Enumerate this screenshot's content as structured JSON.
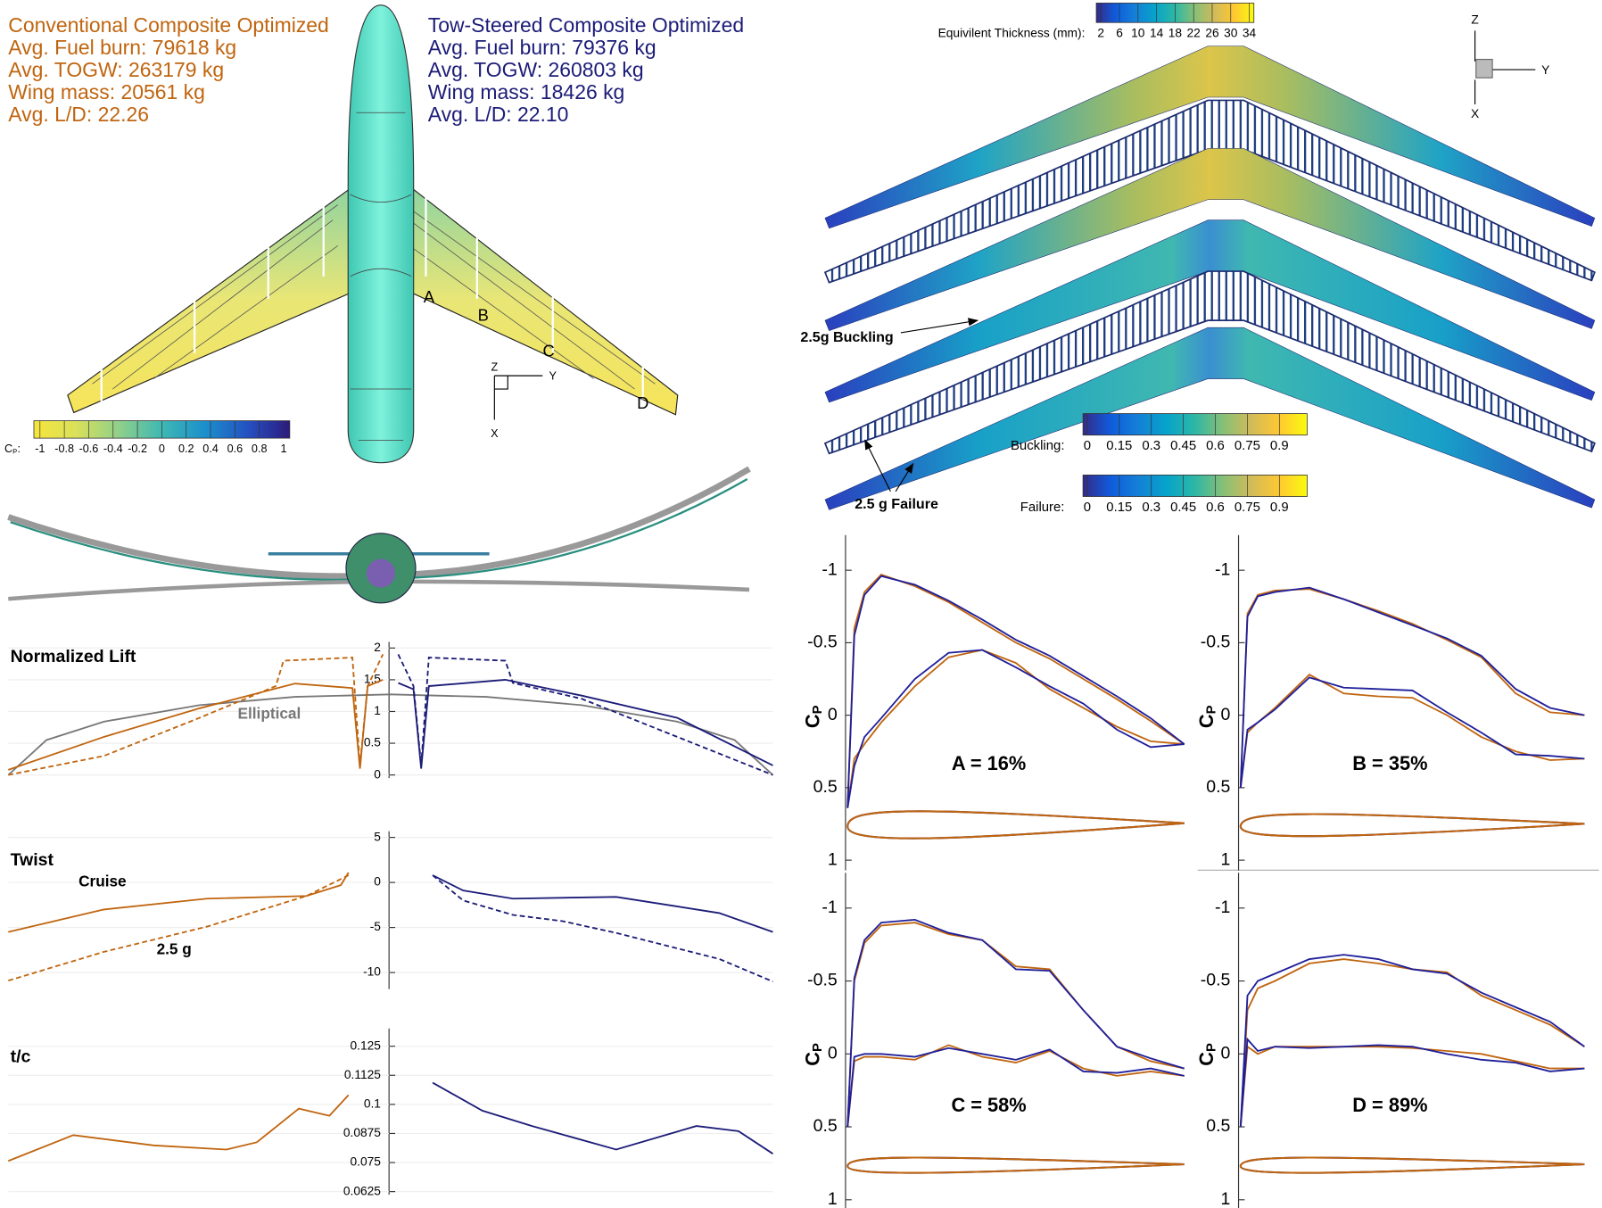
{
  "header": {
    "conventional": [
      "Conventional Composite Optimized",
      "Avg. Fuel burn: 79618 kg",
      "Avg. TOGW: 263179 kg",
      "Wing mass: 20561 kg",
      "Avg. L/D: 22.26"
    ],
    "conventional_color": "#c0650f",
    "tow_steered": [
      "Tow-Steered Composite Optimized",
      "Avg. Fuel burn: 79376 kg",
      "Avg. TOGW: 260803 kg",
      "Wing mass: 18426 kg",
      "Avg. L/D: 22.10"
    ],
    "tow_steered_color": "#1c1c78"
  },
  "planform": {
    "sections": [
      "A",
      "B",
      "C",
      "D"
    ],
    "triad": [
      "Z",
      "Y",
      "X"
    ]
  },
  "cp_colorbar": {
    "label": "Cₚ:",
    "ticks": [
      -1,
      -0.8,
      -0.6,
      -0.4,
      -0.2,
      0,
      0.2,
      0.4,
      0.6,
      0.8,
      1
    ],
    "range": [
      -1.05,
      1.05
    ],
    "colors": [
      "#f6e53c",
      "#d9e05a",
      "#8fd08a",
      "#3fb8b2",
      "#1b90cc",
      "#2452c2",
      "#2c1a80"
    ]
  },
  "structure": {
    "thickness_colorbar": {
      "label": "Equivilent Thickness (mm):",
      "ticks": [
        2,
        6,
        10,
        14,
        18,
        22,
        26,
        30,
        34
      ],
      "range": [
        1,
        35
      ],
      "colors": [
        "#352a87",
        "#0f5cdd",
        "#1481d6",
        "#06a4ca",
        "#2eb7a4",
        "#87bf77",
        "#d1bb59",
        "#fec832",
        "#f9fb0e"
      ]
    },
    "buckling_colorbar": {
      "label": "Buckling:",
      "ticks": [
        0,
        0.15,
        0.3,
        0.45,
        0.6,
        0.75,
        0.9
      ],
      "range": [
        -0.02,
        1.03
      ],
      "colors": [
        "#352a87",
        "#0f5cdd",
        "#1481d6",
        "#06a4ca",
        "#2eb7a4",
        "#87bf77",
        "#d1bb59",
        "#fec832",
        "#f9fb0e"
      ]
    },
    "failure_colorbar": {
      "label": "Failure:",
      "ticks": [
        0,
        0.15,
        0.3,
        0.45,
        0.6,
        0.75,
        0.9
      ],
      "range": [
        -0.02,
        1.03
      ],
      "colors": [
        "#352a87",
        "#0f5cdd",
        "#1481d6",
        "#06a4ca",
        "#2eb7a4",
        "#87bf77",
        "#d1bb59",
        "#fec832",
        "#f9fb0e"
      ]
    },
    "annotations": [
      "2.5g Buckling",
      "2.5 g Failure"
    ],
    "triad": [
      "Z",
      "Y",
      "X"
    ]
  },
  "chart_data": [
    {
      "type": "line",
      "title": "Normalized Lift",
      "xlim": [
        -1,
        1
      ],
      "ylim": [
        0,
        2
      ],
      "yticks": [
        0,
        0.5,
        1,
        1.5,
        2
      ],
      "grid": true,
      "series": [
        {
          "name": "Elliptical",
          "color": "#777777",
          "dash": false,
          "x": [
            -1,
            -0.9,
            -0.75,
            -0.5,
            -0.25,
            0,
            0.25,
            0.5,
            0.75,
            0.9,
            1
          ],
          "values": [
            0,
            0.55,
            0.84,
            1.1,
            1.23,
            1.27,
            1.23,
            1.1,
            0.84,
            0.55,
            0
          ]
        },
        {
          "color": "#c0650f",
          "dash": false,
          "x": [
            -1,
            -0.75,
            -0.5,
            -0.25,
            -0.1,
            -0.08,
            -0.06,
            -0.02
          ],
          "values": [
            0.08,
            0.6,
            1.05,
            1.44,
            1.37,
            0.1,
            1.4,
            1.5
          ]
        },
        {
          "color": "#c0650f",
          "dash": true,
          "x": [
            -1,
            -0.75,
            -0.5,
            -0.3,
            -0.28,
            -0.1,
            -0.08,
            -0.06,
            -0.02
          ],
          "values": [
            0,
            0.3,
            0.9,
            1.4,
            1.8,
            1.85,
            0.15,
            1.4,
            1.9
          ]
        },
        {
          "color": "#1c1c78",
          "dash": false,
          "x": [
            0.02,
            0.06,
            0.08,
            0.1,
            0.3,
            0.5,
            0.75,
            1
          ],
          "values": [
            1.45,
            1.35,
            0.1,
            1.4,
            1.5,
            1.25,
            0.9,
            0.15
          ]
        },
        {
          "color": "#1c1c78",
          "dash": true,
          "x": [
            0.02,
            0.06,
            0.08,
            0.1,
            0.3,
            0.32,
            0.5,
            0.75,
            1
          ],
          "values": [
            1.9,
            1.4,
            0.15,
            1.85,
            1.8,
            1.45,
            1.2,
            0.6,
            0
          ]
        }
      ]
    },
    {
      "type": "line",
      "title": "Twist",
      "xlim": [
        -1,
        1
      ],
      "ylim": [
        -11.5,
        5
      ],
      "yticks": [
        -10,
        -5,
        0,
        5
      ],
      "grid": true,
      "series": [
        {
          "name": "Cruise",
          "color": "#c0650f",
          "dash": false,
          "x": [
            -1,
            -0.75,
            -0.48,
            -0.22,
            -0.13,
            -0.11
          ],
          "values": [
            -5.5,
            -3,
            -1.8,
            -1.5,
            -0.3,
            1.1
          ]
        },
        {
          "name": "2.5 g",
          "color": "#c0650f",
          "dash": true,
          "x": [
            -1,
            -0.75,
            -0.48,
            -0.22,
            -0.11
          ],
          "values": [
            -10.9,
            -7.7,
            -4.9,
            -1.5,
            0.8
          ]
        },
        {
          "color": "#1c1c78",
          "dash": false,
          "x": [
            0.11,
            0.19,
            0.32,
            0.59,
            0.86,
            1
          ],
          "values": [
            0.8,
            -0.9,
            -1.8,
            -1.6,
            -3.4,
            -5.5
          ]
        },
        {
          "color": "#1c1c78",
          "dash": true,
          "x": [
            0.11,
            0.19,
            0.32,
            0.45,
            0.59,
            0.86,
            1
          ],
          "values": [
            0.8,
            -2,
            -3.6,
            -4.3,
            -5.6,
            -8.5,
            -11
          ]
        }
      ]
    },
    {
      "type": "line",
      "title": "t/c",
      "xlim": [
        -1,
        1
      ],
      "ylim": [
        0.0625,
        0.13
      ],
      "yticks": [
        0.0625,
        0.075,
        0.0875,
        0.1,
        0.1125,
        0.125
      ],
      "grid": true,
      "series": [
        {
          "color": "#c0650f",
          "dash": false,
          "x": [
            -1,
            -0.83,
            -0.62,
            -0.43,
            -0.35,
            -0.24,
            -0.16,
            -0.11
          ],
          "values": [
            0.0757,
            0.0868,
            0.0824,
            0.0806,
            0.0837,
            0.0982,
            0.0951,
            0.104
          ]
        },
        {
          "color": "#1c1c78",
          "dash": false,
          "x": [
            0.11,
            0.24,
            0.37,
            0.59,
            0.8,
            0.91,
            1
          ],
          "values": [
            0.1093,
            0.0973,
            0.0907,
            0.0806,
            0.0907,
            0.0885,
            0.0788
          ]
        }
      ]
    },
    {
      "type": "line",
      "title": "A = 16%",
      "ylabel": "C",
      "ylabel_sub": "P",
      "xlim": [
        0,
        1
      ],
      "ylim": [
        -1.2,
        1.05
      ],
      "y_inverted": true,
      "yticks": [
        -1,
        -0.5,
        0,
        0.5,
        1
      ],
      "x": [
        0,
        0.02,
        0.05,
        0.1,
        0.2,
        0.3,
        0.4,
        0.5,
        0.6,
        0.7,
        0.8,
        0.9,
        1
      ],
      "series": [
        {
          "color": "#c0650f",
          "values": [
            0.64,
            -0.6,
            -0.85,
            -0.97,
            -0.89,
            -0.78,
            -0.64,
            -0.5,
            -0.39,
            -0.25,
            -0.11,
            0.04,
            0.2
          ]
        },
        {
          "color": "#c0650f",
          "values": [
            0.64,
            0.3,
            0.2,
            0.05,
            -0.2,
            -0.4,
            -0.45,
            -0.36,
            -0.18,
            -0.05,
            0.08,
            0.18,
            0.2
          ]
        },
        {
          "color": "#1f1f9a",
          "values": [
            0.64,
            -0.55,
            -0.83,
            -0.96,
            -0.9,
            -0.79,
            -0.66,
            -0.52,
            -0.41,
            -0.27,
            -0.13,
            0.02,
            0.2
          ]
        },
        {
          "color": "#1f1f9a",
          "values": [
            0.64,
            0.35,
            0.15,
            0.02,
            -0.25,
            -0.43,
            -0.45,
            -0.33,
            -0.2,
            -0.08,
            0.1,
            0.22,
            0.2
          ]
        }
      ]
    },
    {
      "type": "line",
      "title": "B = 35%",
      "ylabel": "C",
      "ylabel_sub": "P",
      "xlim": [
        0,
        1
      ],
      "ylim": [
        -1.2,
        1.05
      ],
      "y_inverted": true,
      "yticks": [
        -1,
        -0.5,
        0,
        0.5,
        1
      ],
      "x": [
        0,
        0.02,
        0.05,
        0.1,
        0.2,
        0.3,
        0.4,
        0.5,
        0.6,
        0.7,
        0.8,
        0.9,
        1
      ],
      "series": [
        {
          "color": "#c0650f",
          "values": [
            0.5,
            -0.7,
            -0.83,
            -0.86,
            -0.87,
            -0.8,
            -0.72,
            -0.63,
            -0.52,
            -0.4,
            -0.15,
            -0.02,
            0
          ]
        },
        {
          "color": "#c0650f",
          "values": [
            0.5,
            0.12,
            0.05,
            -0.05,
            -0.28,
            -0.15,
            -0.13,
            -0.12,
            0,
            0.15,
            0.25,
            0.31,
            0.3
          ]
        },
        {
          "color": "#1f1f9a",
          "values": [
            0.5,
            -0.68,
            -0.82,
            -0.85,
            -0.88,
            -0.8,
            -0.71,
            -0.62,
            -0.53,
            -0.41,
            -0.18,
            -0.05,
            0
          ]
        },
        {
          "color": "#1f1f9a",
          "values": [
            0.5,
            0.1,
            0.05,
            -0.04,
            -0.26,
            -0.19,
            -0.18,
            -0.17,
            -0.02,
            0.12,
            0.27,
            0.28,
            0.3
          ]
        }
      ]
    },
    {
      "type": "line",
      "title": "C = 58%",
      "ylabel": "C",
      "ylabel_sub": "P",
      "xlim": [
        0,
        1
      ],
      "ylim": [
        -1.2,
        1.05
      ],
      "y_inverted": true,
      "yticks": [
        -1,
        -0.5,
        0,
        0.5,
        1
      ],
      "x": [
        0,
        0.02,
        0.05,
        0.1,
        0.2,
        0.3,
        0.4,
        0.5,
        0.6,
        0.7,
        0.8,
        0.9,
        1
      ],
      "series": [
        {
          "color": "#c0650f",
          "values": [
            0.5,
            -0.5,
            -0.76,
            -0.88,
            -0.9,
            -0.82,
            -0.78,
            -0.6,
            -0.58,
            -0.3,
            -0.05,
            0.05,
            0.1
          ]
        },
        {
          "color": "#c0650f",
          "values": [
            0.5,
            0.05,
            0.02,
            0.02,
            0.04,
            -0.06,
            0.02,
            0.06,
            -0.02,
            0.1,
            0.15,
            0.12,
            0.15
          ]
        },
        {
          "color": "#1f1f9a",
          "values": [
            0.5,
            -0.52,
            -0.78,
            -0.9,
            -0.92,
            -0.83,
            -0.78,
            -0.58,
            -0.57,
            -0.3,
            -0.05,
            0.03,
            0.1
          ]
        },
        {
          "color": "#1f1f9a",
          "values": [
            0.5,
            0.02,
            0,
            0,
            0.02,
            -0.04,
            0,
            0.04,
            -0.03,
            0.12,
            0.13,
            0.1,
            0.15
          ]
        }
      ]
    },
    {
      "type": "line",
      "title": "D = 89%",
      "ylabel": "C",
      "ylabel_sub": "P",
      "xlim": [
        0,
        1
      ],
      "ylim": [
        -1.2,
        1.05
      ],
      "y_inverted": true,
      "yticks": [
        -1,
        -0.5,
        0,
        0.5,
        1
      ],
      "x": [
        0,
        0.02,
        0.05,
        0.1,
        0.2,
        0.3,
        0.4,
        0.5,
        0.6,
        0.7,
        0.8,
        0.9,
        1
      ],
      "series": [
        {
          "color": "#c0650f",
          "values": [
            0.5,
            -0.3,
            -0.45,
            -0.5,
            -0.62,
            -0.65,
            -0.62,
            -0.58,
            -0.56,
            -0.4,
            -0.3,
            -0.2,
            -0.05
          ]
        },
        {
          "color": "#c0650f",
          "values": [
            0.5,
            -0.05,
            0,
            -0.05,
            -0.05,
            -0.05,
            -0.05,
            -0.04,
            -0.02,
            0,
            0.05,
            0.1,
            0.1
          ]
        },
        {
          "color": "#1f1f9a",
          "values": [
            0.5,
            -0.4,
            -0.5,
            -0.55,
            -0.65,
            -0.68,
            -0.65,
            -0.58,
            -0.55,
            -0.42,
            -0.32,
            -0.22,
            -0.05
          ]
        },
        {
          "color": "#1f1f9a",
          "values": [
            0.5,
            -0.1,
            -0.02,
            -0.05,
            -0.04,
            -0.05,
            -0.06,
            -0.05,
            0,
            0.04,
            0.06,
            0.12,
            0.1
          ]
        }
      ]
    }
  ]
}
